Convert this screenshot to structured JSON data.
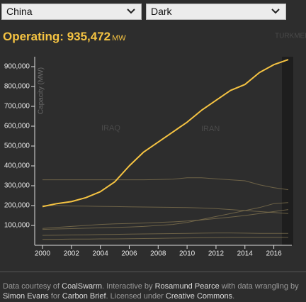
{
  "controls": {
    "country": "China",
    "theme": "Dark"
  },
  "header": {
    "label": "Operating:",
    "value": "935,472",
    "unit": "MW"
  },
  "map_labels": [
    "TURKMENIST",
    "IRAQ",
    "IRAN"
  ],
  "chart_data": {
    "type": "line",
    "y_label": "Capacity (MW)",
    "x": [
      2000,
      2001,
      2002,
      2003,
      2004,
      2005,
      2006,
      2007,
      2008,
      2009,
      2010,
      2011,
      2012,
      2013,
      2014,
      2015,
      2016,
      2017
    ],
    "series": [
      {
        "color": "#8a7a52",
        "values": [
          330000,
          330000,
          330000,
          330000,
          330000,
          330000,
          330000,
          330000,
          331000,
          333000,
          340000,
          340000,
          335000,
          330000,
          325000,
          305000,
          290000,
          280000
        ]
      },
      {
        "color": "#8a7a52",
        "values": [
          200000,
          200000,
          198000,
          197000,
          196000,
          195000,
          194000,
          193000,
          192000,
          191000,
          190000,
          188000,
          185000,
          180000,
          175000,
          170000,
          165000,
          160000
        ]
      },
      {
        "color": "#8a7a52",
        "values": [
          80000,
          82000,
          84000,
          86000,
          88000,
          90000,
          92000,
          95000,
          100000,
          105000,
          115000,
          130000,
          145000,
          160000,
          175000,
          190000,
          210000,
          215000
        ]
      },
      {
        "color": "#8a7a52",
        "values": [
          85000,
          90000,
          95000,
          100000,
          105000,
          108000,
          110000,
          112000,
          115000,
          118000,
          122000,
          128000,
          135000,
          142000,
          150000,
          160000,
          170000,
          180000
        ]
      },
      {
        "color": "#8a7a52",
        "values": [
          50000,
          51000,
          52000,
          53000,
          54000,
          55000,
          56000,
          57000,
          58000,
          59000,
          60000,
          61000,
          62000,
          62000,
          61000,
          60000,
          60000,
          60000
        ]
      },
      {
        "color": "#8a7a52",
        "values": [
          30000,
          30000,
          31000,
          31000,
          32000,
          32000,
          33000,
          34000,
          35000,
          36000,
          37000,
          38000,
          39000,
          40000,
          40000,
          40000,
          40000,
          40000
        ]
      },
      {
        "color": "#f5c342",
        "values": [
          195000,
          210000,
          220000,
          240000,
          270000,
          320000,
          400000,
          470000,
          520000,
          570000,
          620000,
          680000,
          730000,
          780000,
          810000,
          870000,
          910000,
          935472
        ]
      }
    ],
    "xlim": [
      2000,
      2017
    ],
    "xticks": [
      2000,
      2002,
      2004,
      2006,
      2008,
      2010,
      2012,
      2014,
      2016
    ],
    "ylim": [
      0,
      950000
    ],
    "yticks": [
      {
        "value": 100000,
        "label": "100,000"
      },
      {
        "value": 200000,
        "label": "200,000"
      },
      {
        "value": 300000,
        "label": "300,000"
      },
      {
        "value": 400000,
        "label": "400,000"
      },
      {
        "value": 500000,
        "label": "500,000"
      },
      {
        "value": 600000,
        "label": "600,000"
      },
      {
        "value": 700000,
        "label": "700,000"
      },
      {
        "value": 800000,
        "label": "800,000"
      },
      {
        "value": 900000,
        "label": "900,000"
      }
    ]
  },
  "footer": [
    "Data courtesy of ",
    "CoalSwarm",
    ". Interactive by ",
    "Rosamund Pearce",
    " with data wrangling by ",
    "Simon Evans",
    " for ",
    "Carbon Brief",
    ". Licensed under ",
    "Creative Commons",
    "."
  ]
}
